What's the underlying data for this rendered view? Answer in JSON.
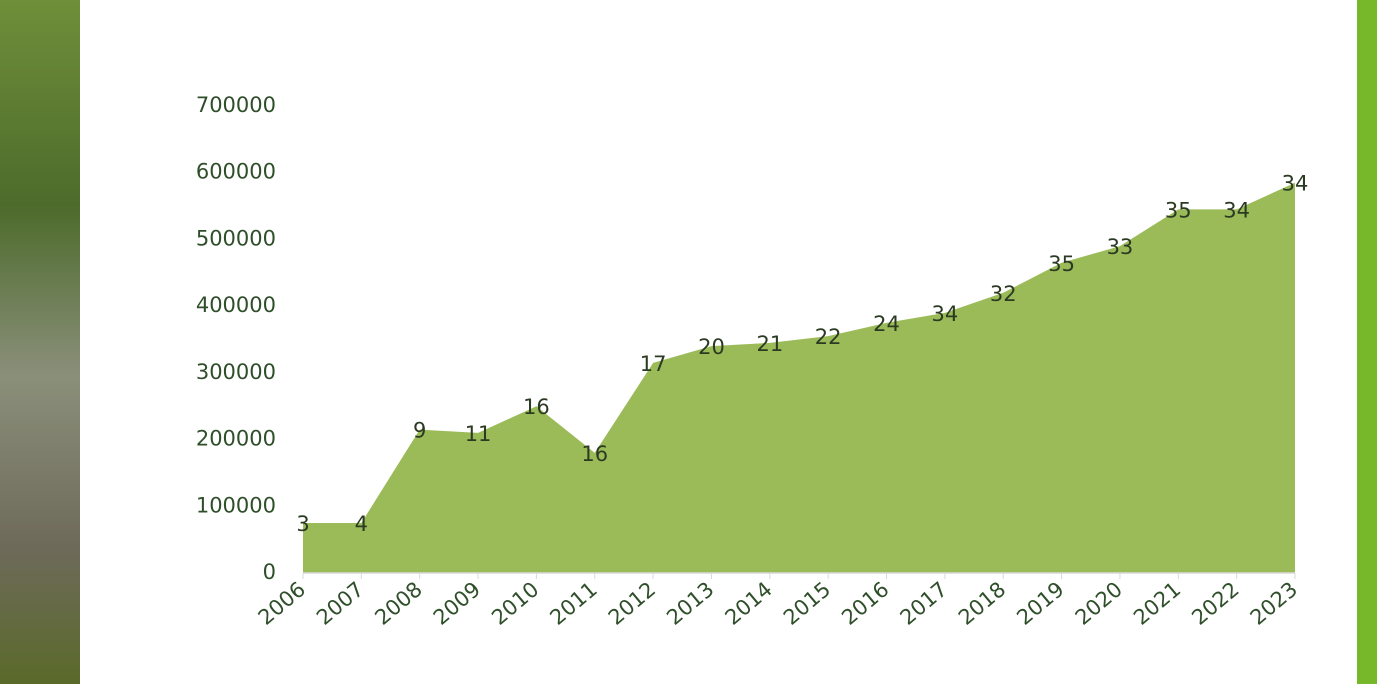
{
  "chart_data": {
    "type": "area",
    "categories": [
      "2006",
      "2007",
      "2008",
      "2009",
      "2010",
      "2011",
      "2012",
      "2013",
      "2014",
      "2015",
      "2016",
      "2017",
      "2018",
      "2019",
      "2020",
      "2021",
      "2022",
      "2023"
    ],
    "values": [
      75000,
      75000,
      215000,
      210000,
      250000,
      180000,
      315000,
      340000,
      345000,
      355000,
      375000,
      390000,
      420000,
      465000,
      490000,
      545000,
      545000,
      585000
    ],
    "counts": [
      3,
      4,
      9,
      11,
      16,
      16,
      17,
      20,
      21,
      22,
      24,
      34,
      32,
      35,
      33,
      35,
      34,
      34
    ],
    "color": "#9bbb59",
    "ylim": [
      0,
      700000
    ],
    "yticks": [
      0,
      100000,
      200000,
      300000,
      400000,
      500000,
      600000,
      700000
    ],
    "grid": false
  }
}
